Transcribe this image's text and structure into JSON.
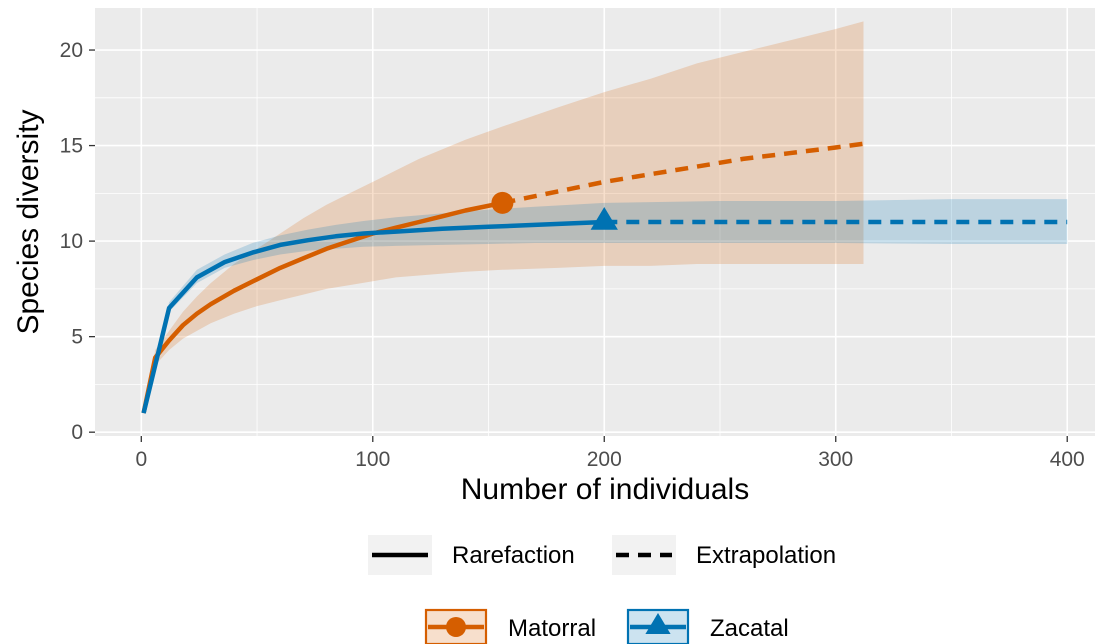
{
  "chart_data": {
    "type": "line",
    "title": "",
    "xlabel": "Number of individuals",
    "ylabel": "Species diversity",
    "xlim": [
      -20,
      412
    ],
    "ylim": [
      -0.2,
      22.2
    ],
    "x_ticks": [
      0,
      100,
      200,
      300,
      400
    ],
    "x_tick_labels": [
      "0",
      "100",
      "200",
      "300",
      "400"
    ],
    "y_ticks": [
      0,
      5,
      10,
      15,
      20
    ],
    "y_tick_labels": [
      "0",
      "5",
      "10",
      "15",
      "20"
    ],
    "grid": true,
    "background": "#ebebeb",
    "legend_position": "bottom",
    "line_type_legend": [
      {
        "label": "Rarefaction",
        "style": "solid"
      },
      {
        "label": "Extrapolation",
        "style": "dashed"
      }
    ],
    "series": [
      {
        "name": "Matorral",
        "color": "#d55e00",
        "marker": "circle",
        "observed": {
          "x": 156,
          "y": 12.0
        },
        "rarefaction": {
          "x": [
            1,
            6,
            12,
            18,
            24,
            30,
            40,
            50,
            60,
            70,
            80,
            90,
            100,
            110,
            120,
            130,
            140,
            156
          ],
          "y": [
            1.0,
            3.9,
            4.8,
            5.6,
            6.2,
            6.7,
            7.4,
            8.0,
            8.6,
            9.1,
            9.6,
            10.0,
            10.4,
            10.7,
            11.0,
            11.3,
            11.6,
            12.0
          ]
        },
        "extrapolation": {
          "x": [
            156,
            180,
            200,
            220,
            240,
            260,
            280,
            300,
            312
          ],
          "y": [
            12.0,
            12.6,
            13.1,
            13.5,
            13.9,
            14.3,
            14.6,
            14.9,
            15.1
          ]
        },
        "ci_x": [
          1,
          6,
          12,
          18,
          24,
          30,
          40,
          50,
          60,
          70,
          80,
          90,
          100,
          110,
          120,
          130,
          140,
          156,
          180,
          200,
          220,
          240,
          260,
          280,
          300,
          312
        ],
        "ci_lower": [
          1.0,
          3.5,
          4.3,
          4.9,
          5.3,
          5.7,
          6.2,
          6.6,
          6.9,
          7.2,
          7.5,
          7.7,
          7.9,
          8.1,
          8.2,
          8.3,
          8.4,
          8.5,
          8.6,
          8.7,
          8.7,
          8.8,
          8.8,
          8.8,
          8.8,
          8.8
        ],
        "ci_upper": [
          1.0,
          4.3,
          5.3,
          6.3,
          7.1,
          7.8,
          8.8,
          9.6,
          10.4,
          11.2,
          11.9,
          12.5,
          13.1,
          13.7,
          14.3,
          14.8,
          15.3,
          16.0,
          17.0,
          17.8,
          18.5,
          19.3,
          19.9,
          20.5,
          21.1,
          21.5
        ]
      },
      {
        "name": "Zacatal",
        "color": "#0072b2",
        "marker": "triangle",
        "observed": {
          "x": 200,
          "y": 11.0
        },
        "rarefaction": {
          "x": [
            1,
            12,
            24,
            36,
            48,
            60,
            72,
            84,
            96,
            110,
            130,
            150,
            170,
            200
          ],
          "y": [
            1.0,
            6.5,
            8.1,
            8.9,
            9.4,
            9.8,
            10.05,
            10.25,
            10.4,
            10.5,
            10.65,
            10.75,
            10.85,
            11.0
          ]
        },
        "extrapolation": {
          "x": [
            200,
            250,
            300,
            350,
            400
          ],
          "y": [
            11.0,
            11.0,
            11.0,
            11.0,
            11.0
          ]
        },
        "ci_x": [
          1,
          12,
          24,
          36,
          48,
          60,
          72,
          84,
          96,
          110,
          130,
          150,
          170,
          200,
          250,
          300,
          350,
          400
        ],
        "ci_lower": [
          1.0,
          6.3,
          7.8,
          8.6,
          9.0,
          9.3,
          9.5,
          9.6,
          9.7,
          9.75,
          9.8,
          9.85,
          9.9,
          9.9,
          9.9,
          9.9,
          9.85,
          9.85
        ],
        "ci_upper": [
          1.0,
          6.8,
          8.5,
          9.3,
          9.9,
          10.3,
          10.6,
          10.85,
          11.05,
          11.25,
          11.45,
          11.65,
          11.8,
          12.0,
          12.1,
          12.1,
          12.2,
          12.2
        ]
      }
    ]
  }
}
